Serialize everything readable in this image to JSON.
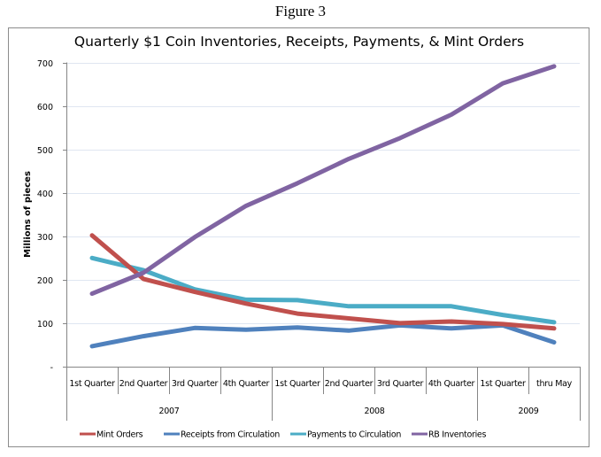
{
  "figure_label": "Figure 3",
  "chart_data": {
    "type": "line",
    "title": "Quarterly $1 Coin Inventories, Receipts, Payments, & Mint Orders",
    "xlabel": "",
    "ylabel": "Millions of pieces",
    "ylim": [
      0,
      700
    ],
    "yticks": [
      0,
      100,
      200,
      300,
      400,
      500,
      600,
      700
    ],
    "ytick_labels": [
      "-",
      "100",
      "200",
      "300",
      "400",
      "500",
      "600",
      "700"
    ],
    "grid": true,
    "legend_position": "bottom",
    "categories": [
      "1st Quarter",
      "2nd Quarter",
      "3rd Quarter",
      "4th Quarter",
      "1st Quarter",
      "2nd Quarter",
      "3rd Quarter",
      "4th Quarter",
      "1st Quarter",
      "thru May"
    ],
    "category_groups": [
      {
        "label": "2007",
        "span": 4
      },
      {
        "label": "2008",
        "span": 4
      },
      {
        "label": "2009",
        "span": 2
      }
    ],
    "series": [
      {
        "name": "Mint Orders",
        "color": "#c0504d",
        "values": [
          302,
          202,
          172,
          145,
          122,
          111,
          100,
          104,
          98,
          88
        ]
      },
      {
        "name": "Receipts from Circulation",
        "color": "#4f81bd",
        "values": [
          47,
          70,
          89,
          85,
          90,
          83,
          95,
          88,
          95,
          56
        ]
      },
      {
        "name": "Payments to Circulation",
        "color": "#4bacc6",
        "values": [
          250,
          222,
          178,
          154,
          153,
          139,
          139,
          139,
          119,
          102
        ]
      },
      {
        "name": "RB Inventories",
        "color": "#8064a2",
        "values": [
          168,
          216,
          298,
          370,
          422,
          478,
          526,
          580,
          652,
          691
        ]
      }
    ]
  }
}
